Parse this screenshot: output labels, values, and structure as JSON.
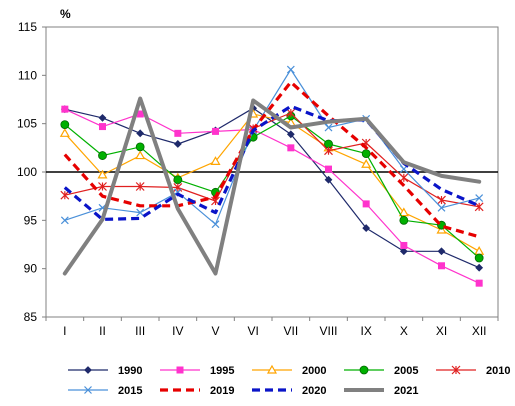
{
  "chart_data": {
    "type": "line",
    "unit": "%",
    "categories": [
      "I",
      "II",
      "III",
      "IV",
      "V",
      "VI",
      "VII",
      "VIII",
      "IX",
      "X",
      "XI",
      "XII"
    ],
    "ylim": [
      85,
      115
    ],
    "yticks": [
      85,
      90,
      95,
      100,
      105,
      110,
      115
    ],
    "reference_line": 100,
    "grid": false,
    "legend_position": "bottom",
    "series": [
      {
        "name": "1990",
        "color": "#1f2a6b",
        "dash": "solid",
        "width": 1.2,
        "marker": "diamond",
        "values": [
          106.5,
          105.6,
          104.0,
          102.9,
          104.3,
          106.6,
          103.9,
          99.2,
          94.2,
          91.8,
          91.8,
          90.1
        ]
      },
      {
        "name": "1995",
        "color": "#ff33cc",
        "dash": "solid",
        "width": 1.2,
        "marker": "square",
        "values": [
          106.5,
          104.7,
          106.0,
          104.0,
          104.2,
          104.4,
          102.5,
          100.3,
          96.7,
          92.4,
          90.3,
          88.5
        ]
      },
      {
        "name": "2000",
        "color": "#ffa500",
        "dash": "solid",
        "width": 1.2,
        "marker": "triangle",
        "values": [
          104.0,
          99.7,
          101.7,
          99.4,
          101.1,
          106.0,
          105.1,
          102.5,
          100.8,
          95.8,
          94.0,
          91.8
        ]
      },
      {
        "name": "2005",
        "color": "#00b000",
        "dash": "solid",
        "width": 1.2,
        "marker": "circle",
        "values": [
          104.9,
          101.7,
          102.6,
          99.2,
          97.9,
          103.6,
          105.8,
          102.9,
          101.9,
          95.0,
          94.5,
          91.1
        ]
      },
      {
        "name": "2010",
        "color": "#e02020",
        "dash": "solid",
        "width": 1.2,
        "marker": "star",
        "values": [
          97.6,
          98.5,
          98.5,
          98.4,
          97.0,
          104.5,
          106.1,
          102.2,
          103.0,
          99.4,
          97.1,
          96.4
        ]
      },
      {
        "name": "2015",
        "color": "#4a90d9",
        "dash": "solid",
        "width": 1.2,
        "marker": "x",
        "values": [
          95.0,
          96.3,
          95.8,
          97.9,
          94.6,
          104.3,
          110.6,
          104.6,
          105.5,
          100.3,
          96.3,
          97.3
        ]
      },
      {
        "name": "2019",
        "color": "#e60000",
        "dash": "dashed",
        "width": 3.2,
        "marker": "none",
        "values": [
          101.8,
          97.5,
          96.5,
          96.5,
          97.4,
          104.4,
          109.3,
          105.8,
          102.5,
          98.6,
          94.4,
          93.3
        ]
      },
      {
        "name": "2020",
        "color": "#0a14c8",
        "dash": "dashed",
        "width": 3.2,
        "marker": "none",
        "values": [
          98.4,
          95.1,
          95.2,
          97.7,
          95.8,
          104.3,
          106.8,
          105.3,
          105.4,
          100.9,
          98.2,
          96.5
        ]
      },
      {
        "name": "2021",
        "color": "#808080",
        "dash": "solid",
        "width": 4,
        "marker": "none",
        "values": [
          89.5,
          95.1,
          107.6,
          96.2,
          89.5,
          107.4,
          104.6,
          105.2,
          105.5,
          101.0,
          99.6,
          99.0
        ]
      }
    ]
  }
}
